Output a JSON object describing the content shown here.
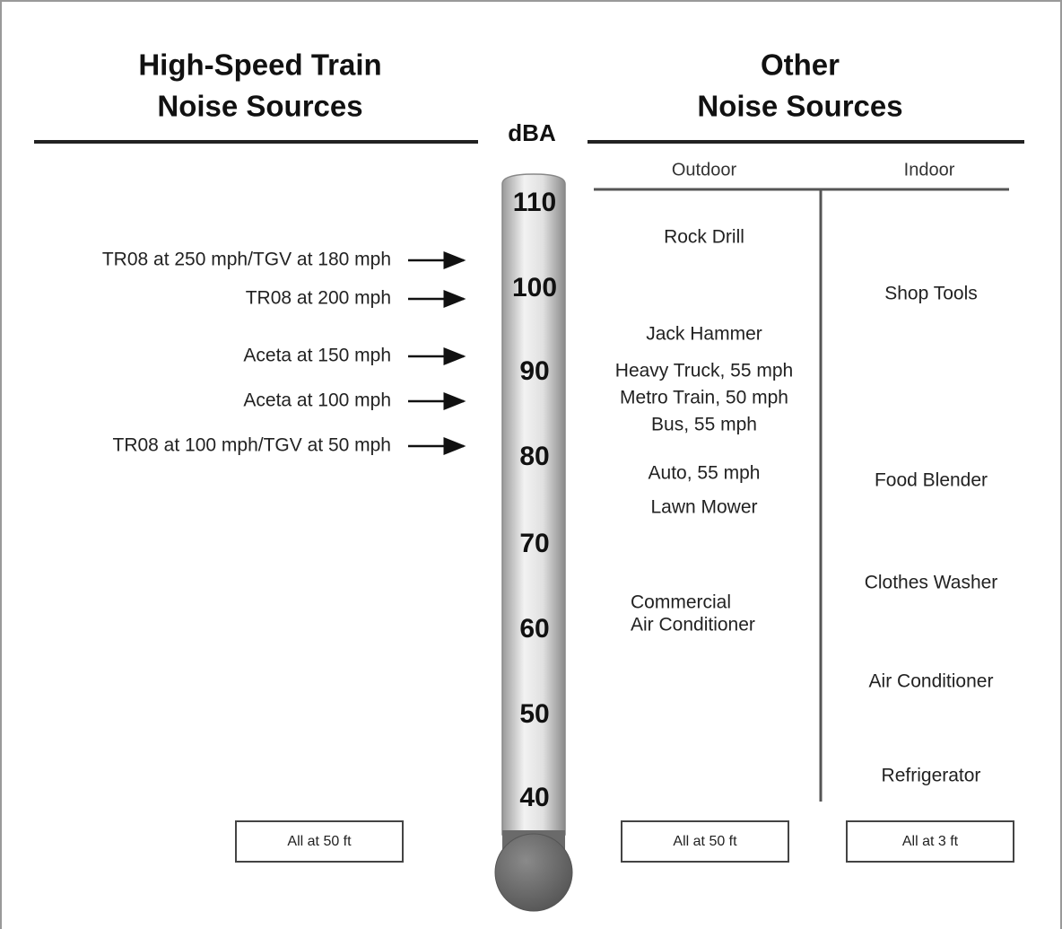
{
  "header": {
    "left_title": [
      "High-Speed Train",
      "Noise Sources"
    ],
    "right_title": [
      "Other",
      "Noise Sources"
    ],
    "unit": "dBA"
  },
  "scale": [
    "110",
    "100",
    "90",
    "80",
    "70",
    "60",
    "50",
    "40"
  ],
  "train_sources": [
    "TR08 at 250 mph/TGV at 180 mph",
    "TR08 at 200 mph",
    "Aceta at 150 mph",
    "Aceta at 100 mph",
    "TR08 at 100 mph/TGV at 50 mph"
  ],
  "columns": {
    "outdoor": "Outdoor",
    "indoor": "Indoor"
  },
  "outdoor": [
    "Rock Drill",
    "Jack Hammer",
    "Heavy Truck, 55 mph",
    "Metro Train, 50 mph",
    "Bus, 55 mph",
    "Auto, 55 mph",
    "Lawn Mower",
    "Commercial",
    "Air Conditioner"
  ],
  "indoor": [
    "Shop Tools",
    "Food Blender",
    "Clothes Washer",
    "Air Conditioner",
    "Refrigerator"
  ],
  "footnotes": [
    "All at 50 ft",
    "All at 50 ft",
    "All at 3 ft"
  ]
}
